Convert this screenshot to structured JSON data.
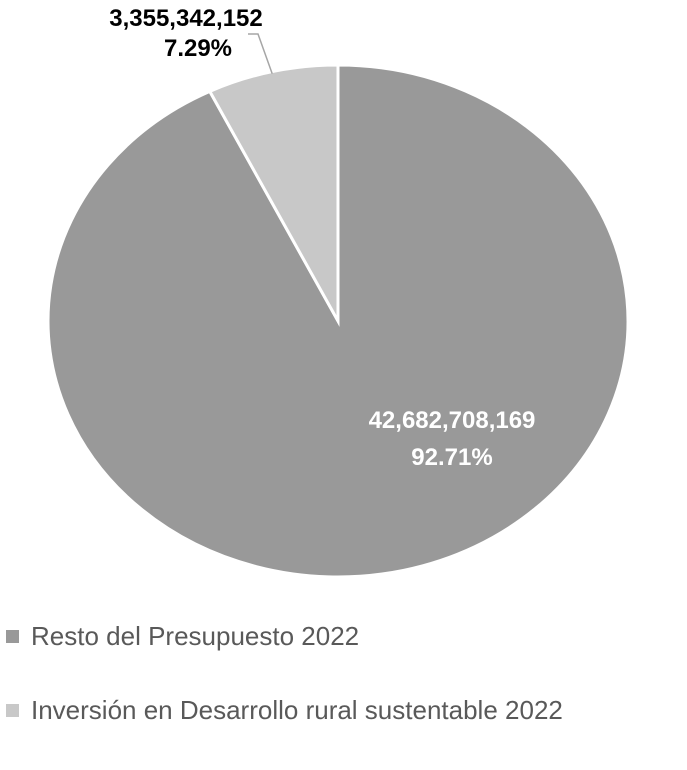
{
  "chart_data": {
    "type": "pie",
    "slices": [
      {
        "name": "Resto del Presupuesto 2022",
        "value": 42682708169,
        "value_label": "42,682,708,169",
        "percent_label": "92.71%",
        "color": "#999999"
      },
      {
        "name": "Inversión en Desarrollo rural sustentable 2022",
        "value": 3355342152,
        "value_label": "3,355,342,152",
        "percent_label": "7.29%",
        "color": "#c8c8c8"
      }
    ],
    "legend_position": "bottom"
  }
}
